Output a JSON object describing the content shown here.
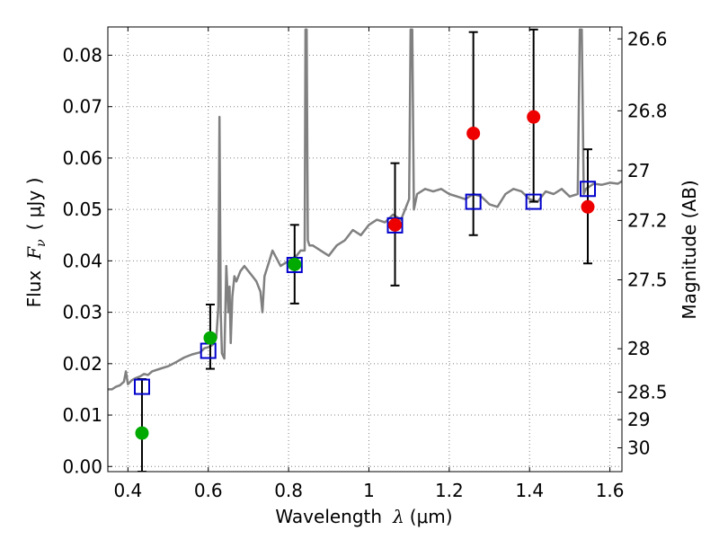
{
  "chart_data": {
    "type": "scatter",
    "xlabel": {
      "text": "Wavelength",
      "symbol": "λ",
      "unit": "(μm)"
    },
    "ylabel": {
      "text": "Flux",
      "symbol": "F",
      "subscript": "ν",
      "unit": "( μJy )"
    },
    "y2label": "Magnitude (AB)",
    "xlim": [
      0.35,
      1.63
    ],
    "ylim": [
      -0.001,
      0.0855
    ],
    "grid": true,
    "x_ticks": [
      {
        "value": 0.4,
        "label": "0.4"
      },
      {
        "value": 0.6,
        "label": "0.6"
      },
      {
        "value": 0.8,
        "label": "0.8"
      },
      {
        "value": 1.0,
        "label": "1"
      },
      {
        "value": 1.2,
        "label": "1.2"
      },
      {
        "value": 1.4,
        "label": "1.4"
      },
      {
        "value": 1.6,
        "label": "1.6"
      }
    ],
    "y_ticks": [
      {
        "value": 0.0,
        "label": "0.00"
      },
      {
        "value": 0.01,
        "label": "0.01"
      },
      {
        "value": 0.02,
        "label": "0.02"
      },
      {
        "value": 0.03,
        "label": "0.03"
      },
      {
        "value": 0.04,
        "label": "0.04"
      },
      {
        "value": 0.05,
        "label": "0.05"
      },
      {
        "value": 0.06,
        "label": "0.06"
      },
      {
        "value": 0.07,
        "label": "0.07"
      },
      {
        "value": 0.08,
        "label": "0.08"
      }
    ],
    "mag_ticks": [
      {
        "value": 26.6,
        "label": "26.6"
      },
      {
        "value": 26.8,
        "label": "26.8"
      },
      {
        "value": 27.0,
        "label": "27"
      },
      {
        "value": 27.2,
        "label": "27.2"
      },
      {
        "value": 27.5,
        "label": "27.5"
      },
      {
        "value": 28.0,
        "label": "28"
      },
      {
        "value": 28.5,
        "label": "28.5"
      },
      {
        "value": 29.0,
        "label": "29"
      },
      {
        "value": 30.0,
        "label": "30"
      }
    ],
    "colors": {
      "model": "#808080",
      "model_photometry": "#0000cc",
      "detected": "#00aa00",
      "measured_red": "#ee0000",
      "errorbar": "#000000",
      "grid": "#808080"
    },
    "model_spectrum": {
      "x": [
        0.35,
        0.36,
        0.37,
        0.38,
        0.39,
        0.395,
        0.4,
        0.41,
        0.42,
        0.43,
        0.44,
        0.45,
        0.46,
        0.48,
        0.5,
        0.52,
        0.54,
        0.56,
        0.58,
        0.59,
        0.6,
        0.61,
        0.62,
        0.625,
        0.628,
        0.631,
        0.634,
        0.64,
        0.645,
        0.65,
        0.653,
        0.656,
        0.66,
        0.665,
        0.67,
        0.68,
        0.69,
        0.7,
        0.71,
        0.72,
        0.73,
        0.735,
        0.74,
        0.75,
        0.76,
        0.78,
        0.8,
        0.82,
        0.83,
        0.84,
        0.842,
        0.845,
        0.848,
        0.852,
        0.86,
        0.88,
        0.9,
        0.92,
        0.94,
        0.96,
        0.98,
        1.0,
        1.02,
        1.04,
        1.06,
        1.08,
        1.09,
        1.1,
        1.104,
        1.108,
        1.112,
        1.12,
        1.14,
        1.16,
        1.18,
        1.2,
        1.22,
        1.24,
        1.26,
        1.28,
        1.3,
        1.32,
        1.34,
        1.36,
        1.38,
        1.4,
        1.42,
        1.44,
        1.46,
        1.48,
        1.5,
        1.52,
        1.525,
        1.53,
        1.535,
        1.54,
        1.56,
        1.58,
        1.6,
        1.62,
        1.63
      ],
      "y": [
        0.015,
        0.015,
        0.0155,
        0.0158,
        0.0165,
        0.0185,
        0.016,
        0.0168,
        0.0172,
        0.0175,
        0.018,
        0.0178,
        0.0185,
        0.019,
        0.0195,
        0.0203,
        0.0212,
        0.0218,
        0.0222,
        0.023,
        0.0232,
        0.0236,
        0.025,
        0.031,
        0.068,
        0.03,
        0.022,
        0.021,
        0.039,
        0.03,
        0.035,
        0.024,
        0.033,
        0.037,
        0.036,
        0.038,
        0.039,
        0.038,
        0.037,
        0.036,
        0.034,
        0.03,
        0.037,
        0.0395,
        0.042,
        0.039,
        0.04,
        0.041,
        0.042,
        0.042,
        0.085,
        0.085,
        0.044,
        0.043,
        0.043,
        0.042,
        0.041,
        0.043,
        0.044,
        0.046,
        0.045,
        0.047,
        0.048,
        0.0475,
        0.049,
        0.048,
        0.05,
        0.052,
        0.085,
        0.085,
        0.05,
        0.053,
        0.054,
        0.0535,
        0.054,
        0.053,
        0.0525,
        0.052,
        0.053,
        0.0525,
        0.051,
        0.0505,
        0.053,
        0.054,
        0.0535,
        0.052,
        0.0515,
        0.0535,
        0.053,
        0.054,
        0.0525,
        0.053,
        0.085,
        0.085,
        0.053,
        0.054,
        0.055,
        0.0548,
        0.0552,
        0.055,
        0.0555
      ]
    },
    "series": [
      {
        "marker": "square-open",
        "points": [
          {
            "x": 0.435,
            "y": 0.0155
          },
          {
            "x": 0.6,
            "y": 0.0225
          },
          {
            "x": 0.815,
            "y": 0.0392
          },
          {
            "x": 1.065,
            "y": 0.0469
          },
          {
            "x": 1.26,
            "y": 0.0515
          },
          {
            "x": 1.41,
            "y": 0.0515
          },
          {
            "x": 1.545,
            "y": 0.054
          }
        ]
      },
      {
        "marker": "circle-filled-green",
        "points": [
          {
            "x": 0.435,
            "y": 0.0065,
            "ylo": -0.001,
            "yhi": 0.017
          },
          {
            "x": 0.605,
            "y": 0.025,
            "ylo": 0.019,
            "yhi": 0.0315
          },
          {
            "x": 0.815,
            "y": 0.0393,
            "ylo": 0.0317,
            "yhi": 0.047
          }
        ]
      },
      {
        "marker": "circle-filled-red",
        "points": [
          {
            "x": 1.065,
            "y": 0.047,
            "ylo": 0.0352,
            "yhi": 0.059
          },
          {
            "x": 1.26,
            "y": 0.0648,
            "ylo": 0.045,
            "yhi": 0.0845
          },
          {
            "x": 1.41,
            "y": 0.068,
            "ylo": 0.0515,
            "yhi": 0.085
          },
          {
            "x": 1.545,
            "y": 0.0505,
            "ylo": 0.0395,
            "yhi": 0.0617
          }
        ]
      }
    ]
  }
}
